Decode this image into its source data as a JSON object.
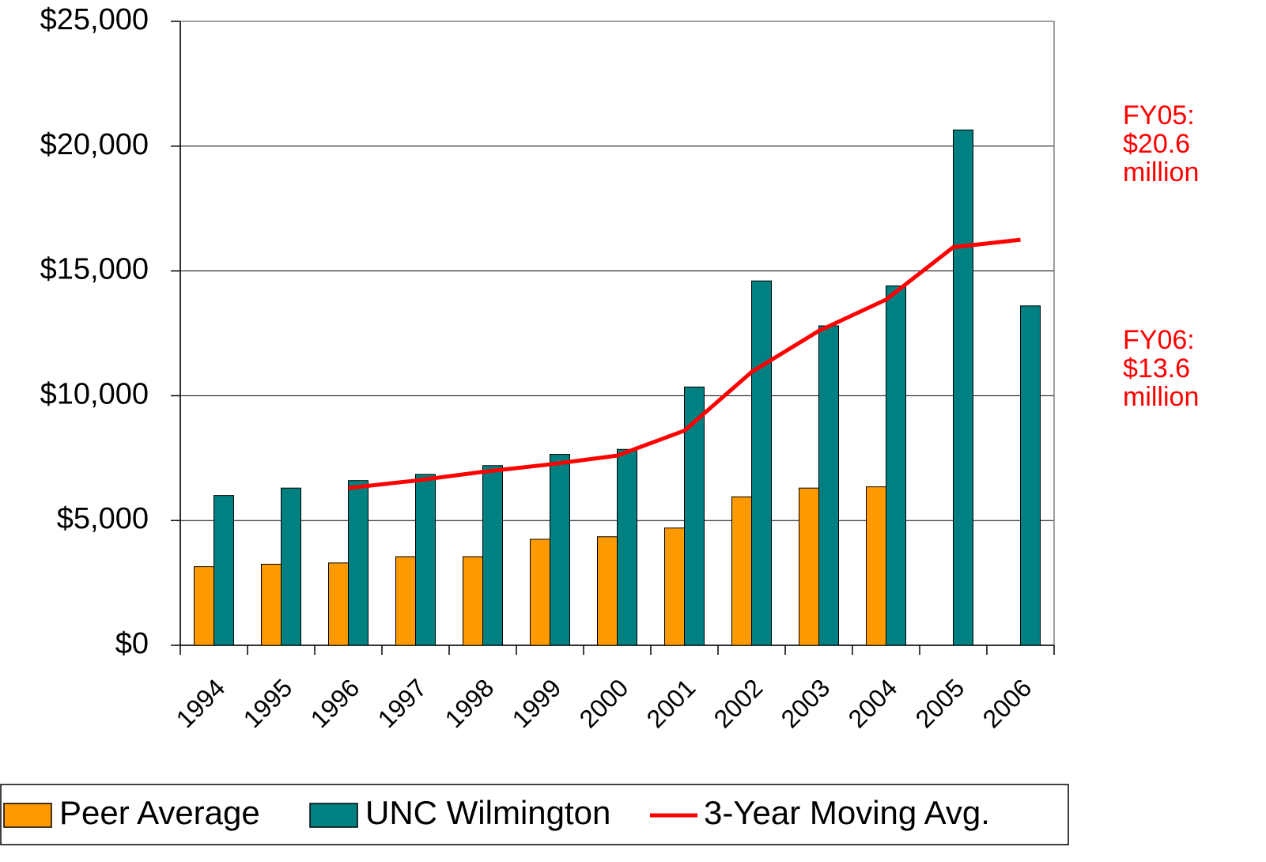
{
  "chart_data": {
    "type": "bar",
    "categories": [
      "1994",
      "1995",
      "1996",
      "1997",
      "1998",
      "1999",
      "2000",
      "2001",
      "2002",
      "2003",
      "2004",
      "2005",
      "2006"
    ],
    "series": [
      {
        "name": "Peer Average",
        "color": "#ff9900",
        "values": [
          3150,
          3250,
          3300,
          3550,
          3550,
          4250,
          4350,
          4700,
          5950,
          6300,
          6350,
          null,
          null
        ]
      },
      {
        "name": "UNC Wilmington",
        "color": "#008080",
        "values": [
          6000,
          6300,
          6600,
          6850,
          7200,
          7650,
          7850,
          10350,
          14600,
          12800,
          14400,
          20650,
          13600
        ]
      },
      {
        "name": "3-Year Moving Avg.",
        "color": "#ff0000",
        "type": "line",
        "values": [
          null,
          null,
          6300,
          6600,
          6950,
          7250,
          7600,
          8600,
          10950,
          12600,
          13850,
          15950,
          16250
        ]
      }
    ],
    "ylim": [
      0,
      25000
    ],
    "yticks": [
      {
        "value": 0,
        "label": "$0"
      },
      {
        "value": 5000,
        "label": "$5,000"
      },
      {
        "value": 10000,
        "label": "$10,000"
      },
      {
        "value": 15000,
        "label": "$15,000"
      },
      {
        "value": 20000,
        "label": "$20,000"
      },
      {
        "value": 25000,
        "label": "$25,000"
      }
    ],
    "grid": true,
    "legend": "bottom",
    "annotations": [
      {
        "lines": [
          "FY05:",
          "$20.6",
          "million"
        ],
        "color": "#ff0000"
      },
      {
        "lines": [
          "FY06:",
          "$13.6",
          "million"
        ],
        "color": "#ff0000"
      }
    ]
  }
}
